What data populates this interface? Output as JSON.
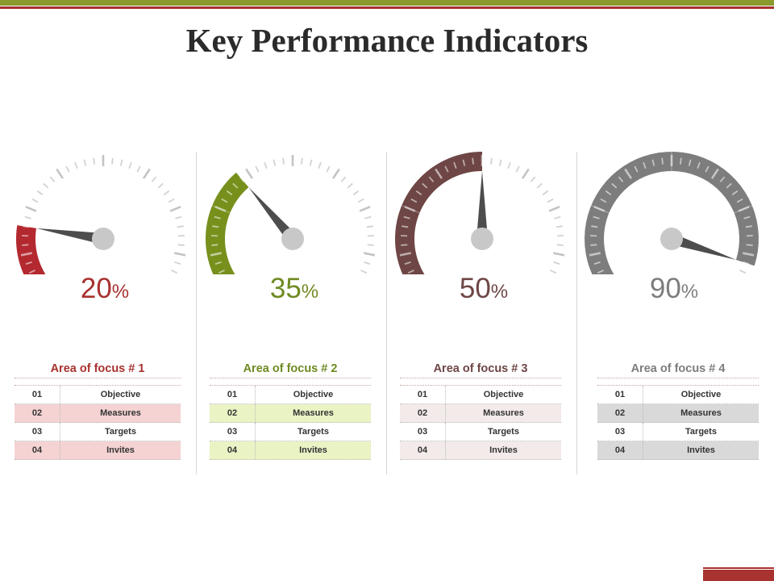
{
  "title": "Key Performance Indicators",
  "colors": {
    "red": "#b3292f",
    "green": "#77901c",
    "brown": "#6e4645",
    "gray": "#7d7d7d"
  },
  "gauges": [
    {
      "value": 20,
      "value_text": "20",
      "unit": "%",
      "color": "#b3292f",
      "pct_color": "#a8322f",
      "area": {
        "title": "Area of focus # 1",
        "row_alt": "#f5d3d3",
        "rows": [
          {
            "num": "01",
            "label": "Objective"
          },
          {
            "num": "02",
            "label": "Measures"
          },
          {
            "num": "03",
            "label": "Targets"
          },
          {
            "num": "04",
            "label": "Invites"
          }
        ]
      }
    },
    {
      "value": 35,
      "value_text": "35",
      "unit": "%",
      "color": "#77901c",
      "pct_color": "#6f8a22",
      "area": {
        "title": "Area of focus # 2",
        "row_alt": "#e9f3c4",
        "rows": [
          {
            "num": "01",
            "label": "Objective"
          },
          {
            "num": "02",
            "label": "Measures"
          },
          {
            "num": "03",
            "label": "Targets"
          },
          {
            "num": "04",
            "label": "Invites"
          }
        ]
      }
    },
    {
      "value": 50,
      "value_text": "50",
      "unit": "%",
      "color": "#6e4645",
      "pct_color": "#6e4645",
      "area": {
        "title": "Area of focus # 3",
        "row_alt": "#f3eaea",
        "rows": [
          {
            "num": "01",
            "label": "Objective"
          },
          {
            "num": "02",
            "label": "Measures"
          },
          {
            "num": "03",
            "label": "Targets"
          },
          {
            "num": "04",
            "label": "Invites"
          }
        ]
      }
    },
    {
      "value": 90,
      "value_text": "90",
      "unit": "%",
      "color": "#7d7d7d",
      "pct_color": "#7d7d7d",
      "area": {
        "title": "Area of focus # 4",
        "row_alt": "#d9d9d9",
        "rows": [
          {
            "num": "01",
            "label": "Objective"
          },
          {
            "num": "02",
            "label": "Measures"
          },
          {
            "num": "03",
            "label": "Targets"
          },
          {
            "num": "04",
            "label": "Invites"
          }
        ]
      }
    }
  ]
}
